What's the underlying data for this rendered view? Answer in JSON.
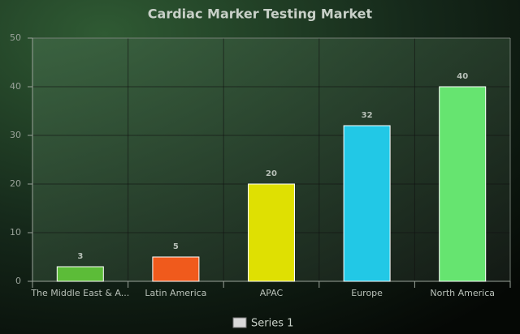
{
  "chart_data": {
    "type": "bar",
    "title": "Cardiac Marker Testing Market",
    "categories": [
      "The Middle East & A...",
      "Latin America",
      "APAC",
      "Europe",
      "North America"
    ],
    "series": [
      {
        "name": "Series 1",
        "values": [
          3,
          5,
          20,
          32,
          40
        ],
        "colors": [
          "#5cbc38",
          "#f05a1c",
          "#dfe002",
          "#22c8e6",
          "#66e470"
        ],
        "legend_color": "#d9d9d9"
      }
    ],
    "ylim": [
      0,
      50
    ],
    "yticks": [
      0,
      10,
      20,
      30,
      40,
      50
    ],
    "grid": true,
    "legend": "bottom"
  }
}
